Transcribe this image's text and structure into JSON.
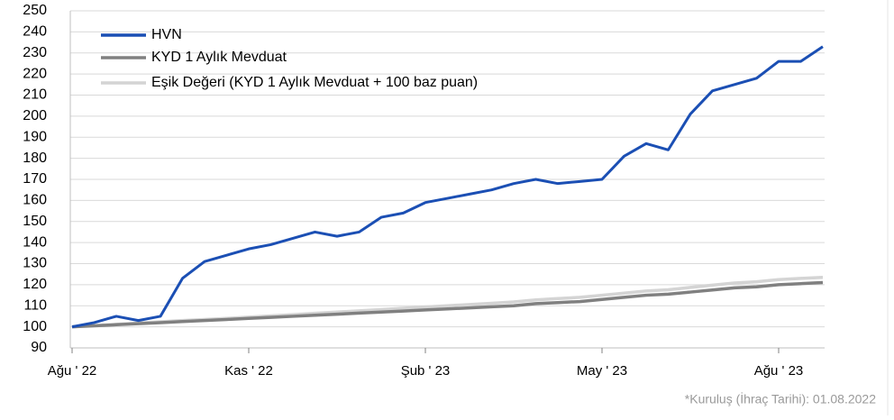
{
  "chart_data": {
    "type": "line",
    "categories": [
      "Ağu ' 22",
      null,
      null,
      null,
      null,
      null,
      null,
      null,
      "Kas ' 22",
      null,
      null,
      null,
      null,
      null,
      null,
      null,
      "Şub ' 23",
      null,
      null,
      null,
      null,
      null,
      null,
      null,
      "May ' 23",
      null,
      null,
      null,
      null,
      null,
      null,
      null,
      "Ağu ' 23",
      null,
      null
    ],
    "series": [
      {
        "name": "HVN",
        "color": "#1b4fb4",
        "values": [
          100,
          102,
          105,
          103,
          105,
          123,
          131,
          134,
          137,
          139,
          142,
          145,
          143,
          145,
          152,
          154,
          159,
          161,
          163,
          165,
          168,
          170,
          168,
          169,
          170,
          181,
          187,
          184,
          201,
          212,
          215,
          218,
          226,
          226,
          233
        ]
      },
      {
        "name": "KYD 1 Aylık Mevduat",
        "color": "#808080",
        "values": [
          100,
          100.5,
          101,
          101.5,
          102,
          102.5,
          103,
          103.5,
          104,
          104.5,
          105,
          105.5,
          106,
          106.5,
          107,
          107.5,
          108,
          108.5,
          109,
          109.5,
          110,
          111,
          111.5,
          112,
          113,
          114,
          115,
          115.5,
          116.5,
          117.5,
          118.5,
          119,
          120,
          120.5,
          121
        ]
      },
      {
        "name": "Eşik Değeri (KYD 1 Aylık Mevduat + 100 baz puan)",
        "color": "#d4d4d4",
        "values": [
          100,
          100.6,
          101.2,
          101.8,
          102.4,
          103,
          103.5,
          104,
          104.6,
          105.2,
          105.8,
          106.4,
          107,
          107.6,
          108.2,
          108.8,
          109.4,
          110,
          110.6,
          111.2,
          111.8,
          112.8,
          113.4,
          114,
          115,
          116,
          117,
          117.6,
          118.7,
          119.8,
          120.8,
          121.4,
          122.4,
          123,
          123.5
        ]
      }
    ],
    "ylim": [
      90,
      250
    ],
    "yticks": [
      90,
      100,
      110,
      120,
      130,
      140,
      150,
      160,
      170,
      180,
      190,
      200,
      210,
      220,
      230,
      240,
      250
    ],
    "grid": true,
    "legend": "top-left",
    "annotation": "*Kuruluş (İhraç Tarihi): 01.08.2022"
  }
}
